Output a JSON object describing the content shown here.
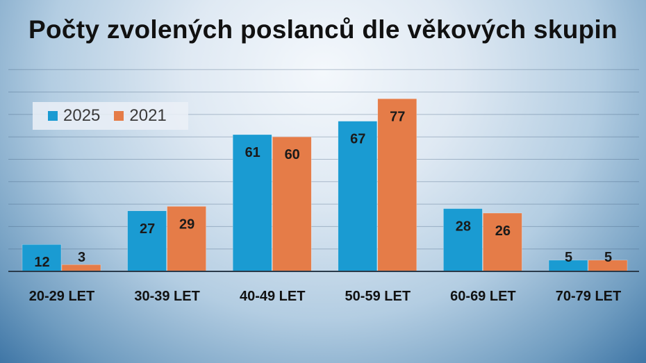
{
  "title": "Počty zvolených poslanců dle věkových skupin",
  "colors": {
    "series_2025": "#1a9bd2",
    "series_2021": "#e57c48"
  },
  "chart_data": {
    "type": "bar",
    "title": "Počty zvolených poslanců dle věkových skupin",
    "categories": [
      "20-29 LET",
      "30-39 LET",
      "40-49 LET",
      "50-59 LET",
      "60-69 LET",
      "70-79 LET"
    ],
    "series": [
      {
        "name": "2025",
        "values": [
          12,
          27,
          61,
          67,
          28,
          5
        ]
      },
      {
        "name": "2021",
        "values": [
          3,
          29,
          60,
          77,
          26,
          5
        ]
      }
    ],
    "ylim": [
      0,
      90
    ],
    "grid": true,
    "legend": "top-left",
    "data_labels": true
  }
}
